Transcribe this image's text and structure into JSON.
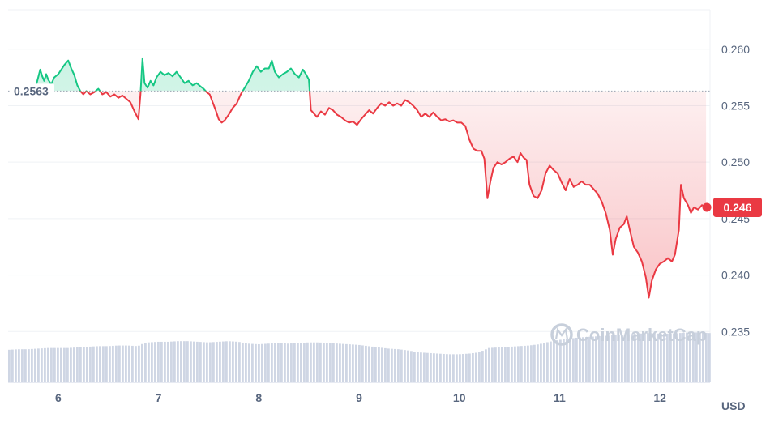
{
  "chart_data": {
    "type": "area",
    "baseline": 0.2563,
    "baseline_label": "0.2563",
    "current_value": 0.246,
    "current_label": "0.246",
    "unit": "USD",
    "watermark": "CoinMarketCap",
    "x_ticks": [
      {
        "x": 6,
        "label": "6"
      },
      {
        "x": 7,
        "label": "7"
      },
      {
        "x": 8,
        "label": "8"
      },
      {
        "x": 9,
        "label": "9"
      },
      {
        "x": 10,
        "label": "10"
      },
      {
        "x": 11,
        "label": "11"
      },
      {
        "x": 12,
        "label": "12"
      }
    ],
    "y_ticks": [
      {
        "y": 0.26,
        "label": "0.260"
      },
      {
        "y": 0.255,
        "label": "0.255"
      },
      {
        "y": 0.25,
        "label": "0.250"
      },
      {
        "y": 0.245,
        "label": "0.245"
      },
      {
        "y": 0.24,
        "label": "0.240"
      },
      {
        "y": 0.235,
        "label": "0.235"
      }
    ],
    "xlim": [
      5.5,
      12.5
    ],
    "ylim": [
      0.2305,
      0.2635
    ],
    "grid": true,
    "colors": {
      "up": "#16c784",
      "down": "#ea3943",
      "volume": "#cfd6e4",
      "grid": "#eff2f5"
    },
    "series": [
      {
        "values": [
          [
            5.75,
            0.2563
          ],
          [
            5.78,
            0.2568
          ],
          [
            5.8,
            0.2575
          ],
          [
            5.82,
            0.2582
          ],
          [
            5.84,
            0.2576
          ],
          [
            5.86,
            0.2572
          ],
          [
            5.88,
            0.2578
          ],
          [
            5.9,
            0.2573
          ],
          [
            5.93,
            0.2569
          ],
          [
            5.96,
            0.2575
          ],
          [
            6.0,
            0.2578
          ],
          [
            6.03,
            0.2582
          ],
          [
            6.06,
            0.2586
          ],
          [
            6.1,
            0.259
          ],
          [
            6.13,
            0.2583
          ],
          [
            6.16,
            0.2577
          ],
          [
            6.19,
            0.2568
          ],
          [
            6.22,
            0.2563
          ],
          [
            6.25,
            0.256
          ],
          [
            6.28,
            0.2563
          ],
          [
            6.32,
            0.256
          ],
          [
            6.36,
            0.2562
          ],
          [
            6.4,
            0.2565
          ],
          [
            6.44,
            0.256
          ],
          [
            6.48,
            0.2562
          ],
          [
            6.52,
            0.2558
          ],
          [
            6.56,
            0.256
          ],
          [
            6.6,
            0.2557
          ],
          [
            6.64,
            0.2559
          ],
          [
            6.68,
            0.2556
          ],
          [
            6.72,
            0.2553
          ],
          [
            6.76,
            0.2545
          ],
          [
            6.8,
            0.2538
          ],
          [
            6.82,
            0.256
          ],
          [
            6.84,
            0.2592
          ],
          [
            6.86,
            0.257
          ],
          [
            6.89,
            0.2566
          ],
          [
            6.92,
            0.2572
          ],
          [
            6.95,
            0.2568
          ],
          [
            6.98,
            0.2575
          ],
          [
            7.02,
            0.258
          ],
          [
            7.06,
            0.2577
          ],
          [
            7.1,
            0.2579
          ],
          [
            7.14,
            0.2576
          ],
          [
            7.18,
            0.258
          ],
          [
            7.22,
            0.2575
          ],
          [
            7.26,
            0.257
          ],
          [
            7.3,
            0.2572
          ],
          [
            7.34,
            0.2568
          ],
          [
            7.38,
            0.257
          ],
          [
            7.42,
            0.2567
          ],
          [
            7.45,
            0.2565
          ],
          [
            7.48,
            0.2562
          ],
          [
            7.51,
            0.256
          ],
          [
            7.54,
            0.2553
          ],
          [
            7.57,
            0.2546
          ],
          [
            7.6,
            0.2538
          ],
          [
            7.63,
            0.2535
          ],
          [
            7.66,
            0.2537
          ],
          [
            7.7,
            0.2542
          ],
          [
            7.74,
            0.2548
          ],
          [
            7.78,
            0.2552
          ],
          [
            7.82,
            0.256
          ],
          [
            7.86,
            0.2566
          ],
          [
            7.9,
            0.2572
          ],
          [
            7.94,
            0.258
          ],
          [
            7.98,
            0.2585
          ],
          [
            8.02,
            0.258
          ],
          [
            8.06,
            0.2583
          ],
          [
            8.1,
            0.2583
          ],
          [
            8.13,
            0.259
          ],
          [
            8.16,
            0.258
          ],
          [
            8.2,
            0.2575
          ],
          [
            8.24,
            0.2578
          ],
          [
            8.28,
            0.258
          ],
          [
            8.32,
            0.2583
          ],
          [
            8.36,
            0.2578
          ],
          [
            8.4,
            0.2575
          ],
          [
            8.44,
            0.2582
          ],
          [
            8.47,
            0.2578
          ],
          [
            8.5,
            0.2573
          ],
          [
            8.52,
            0.2546
          ],
          [
            8.55,
            0.2543
          ],
          [
            8.58,
            0.254
          ],
          [
            8.62,
            0.2545
          ],
          [
            8.66,
            0.2542
          ],
          [
            8.7,
            0.2548
          ],
          [
            8.74,
            0.2546
          ],
          [
            8.78,
            0.2542
          ],
          [
            8.82,
            0.254
          ],
          [
            8.86,
            0.2537
          ],
          [
            8.9,
            0.2535
          ],
          [
            8.94,
            0.2536
          ],
          [
            8.98,
            0.2533
          ],
          [
            9.02,
            0.2538
          ],
          [
            9.06,
            0.2542
          ],
          [
            9.1,
            0.2546
          ],
          [
            9.14,
            0.2543
          ],
          [
            9.18,
            0.2548
          ],
          [
            9.22,
            0.2552
          ],
          [
            9.26,
            0.255
          ],
          [
            9.3,
            0.2553
          ],
          [
            9.34,
            0.255
          ],
          [
            9.38,
            0.2552
          ],
          [
            9.42,
            0.255
          ],
          [
            9.46,
            0.2555
          ],
          [
            9.5,
            0.2553
          ],
          [
            9.54,
            0.255
          ],
          [
            9.58,
            0.2546
          ],
          [
            9.62,
            0.254
          ],
          [
            9.66,
            0.2543
          ],
          [
            9.7,
            0.254
          ],
          [
            9.74,
            0.2544
          ],
          [
            9.78,
            0.254
          ],
          [
            9.82,
            0.2537
          ],
          [
            9.86,
            0.2538
          ],
          [
            9.9,
            0.2536
          ],
          [
            9.94,
            0.2537
          ],
          [
            9.98,
            0.2535
          ],
          [
            10.02,
            0.2535
          ],
          [
            10.06,
            0.2532
          ],
          [
            10.1,
            0.252
          ],
          [
            10.14,
            0.2512
          ],
          [
            10.18,
            0.251
          ],
          [
            10.22,
            0.251
          ],
          [
            10.25,
            0.2503
          ],
          [
            10.28,
            0.2468
          ],
          [
            10.31,
            0.2483
          ],
          [
            10.34,
            0.2495
          ],
          [
            10.38,
            0.25
          ],
          [
            10.42,
            0.2498
          ],
          [
            10.46,
            0.25
          ],
          [
            10.5,
            0.2503
          ],
          [
            10.54,
            0.2505
          ],
          [
            10.58,
            0.25
          ],
          [
            10.61,
            0.2508
          ],
          [
            10.64,
            0.2504
          ],
          [
            10.67,
            0.2502
          ],
          [
            10.7,
            0.248
          ],
          [
            10.74,
            0.247
          ],
          [
            10.78,
            0.2468
          ],
          [
            10.82,
            0.2475
          ],
          [
            10.86,
            0.249
          ],
          [
            10.9,
            0.2497
          ],
          [
            10.94,
            0.2493
          ],
          [
            10.98,
            0.249
          ],
          [
            11.02,
            0.2482
          ],
          [
            11.06,
            0.2475
          ],
          [
            11.1,
            0.2485
          ],
          [
            11.14,
            0.2478
          ],
          [
            11.18,
            0.248
          ],
          [
            11.22,
            0.2483
          ],
          [
            11.26,
            0.248
          ],
          [
            11.3,
            0.248
          ],
          [
            11.34,
            0.2476
          ],
          [
            11.38,
            0.2472
          ],
          [
            11.42,
            0.2465
          ],
          [
            11.46,
            0.2455
          ],
          [
            11.5,
            0.244
          ],
          [
            11.53,
            0.2418
          ],
          [
            11.56,
            0.2432
          ],
          [
            11.6,
            0.2442
          ],
          [
            11.64,
            0.2445
          ],
          [
            11.67,
            0.2452
          ],
          [
            11.7,
            0.244
          ],
          [
            11.74,
            0.2425
          ],
          [
            11.78,
            0.242
          ],
          [
            11.82,
            0.2412
          ],
          [
            11.86,
            0.2398
          ],
          [
            11.89,
            0.238
          ],
          [
            11.92,
            0.2395
          ],
          [
            11.96,
            0.2405
          ],
          [
            12.0,
            0.241
          ],
          [
            12.04,
            0.2412
          ],
          [
            12.08,
            0.2415
          ],
          [
            12.12,
            0.2412
          ],
          [
            12.15,
            0.2418
          ],
          [
            12.19,
            0.244
          ],
          [
            12.21,
            0.248
          ],
          [
            12.24,
            0.2468
          ],
          [
            12.28,
            0.2462
          ],
          [
            12.31,
            0.2455
          ],
          [
            12.34,
            0.246
          ],
          [
            12.38,
            0.2458
          ],
          [
            12.42,
            0.2462
          ],
          [
            12.46,
            0.246
          ]
        ]
      }
    ],
    "volume_values": [
      [
        5.5,
        0.52
      ],
      [
        5.6,
        0.53
      ],
      [
        5.7,
        0.53
      ],
      [
        5.8,
        0.54
      ],
      [
        5.9,
        0.55
      ],
      [
        6.0,
        0.55
      ],
      [
        6.1,
        0.55
      ],
      [
        6.2,
        0.56
      ],
      [
        6.3,
        0.57
      ],
      [
        6.4,
        0.58
      ],
      [
        6.5,
        0.58
      ],
      [
        6.6,
        0.59
      ],
      [
        6.7,
        0.59
      ],
      [
        6.8,
        0.58
      ],
      [
        6.85,
        0.62
      ],
      [
        6.9,
        0.64
      ],
      [
        7.0,
        0.65
      ],
      [
        7.1,
        0.65
      ],
      [
        7.2,
        0.66
      ],
      [
        7.3,
        0.66
      ],
      [
        7.4,
        0.65
      ],
      [
        7.5,
        0.64
      ],
      [
        7.6,
        0.65
      ],
      [
        7.7,
        0.66
      ],
      [
        7.8,
        0.65
      ],
      [
        7.9,
        0.62
      ],
      [
        8.0,
        0.61
      ],
      [
        8.1,
        0.62
      ],
      [
        8.2,
        0.63
      ],
      [
        8.3,
        0.62
      ],
      [
        8.4,
        0.63
      ],
      [
        8.5,
        0.64
      ],
      [
        8.6,
        0.64
      ],
      [
        8.7,
        0.63
      ],
      [
        8.8,
        0.62
      ],
      [
        8.9,
        0.61
      ],
      [
        9.0,
        0.6
      ],
      [
        9.1,
        0.58
      ],
      [
        9.2,
        0.56
      ],
      [
        9.3,
        0.54
      ],
      [
        9.4,
        0.53
      ],
      [
        9.5,
        0.51
      ],
      [
        9.6,
        0.48
      ],
      [
        9.7,
        0.47
      ],
      [
        9.8,
        0.46
      ],
      [
        9.9,
        0.45
      ],
      [
        10.0,
        0.45
      ],
      [
        10.1,
        0.46
      ],
      [
        10.2,
        0.48
      ],
      [
        10.3,
        0.55
      ],
      [
        10.4,
        0.56
      ],
      [
        10.5,
        0.57
      ],
      [
        10.6,
        0.58
      ],
      [
        10.7,
        0.59
      ],
      [
        10.8,
        0.61
      ],
      [
        10.9,
        0.65
      ],
      [
        11.0,
        0.68
      ],
      [
        11.1,
        0.7
      ],
      [
        11.2,
        0.72
      ],
      [
        11.3,
        0.73
      ],
      [
        11.4,
        0.74
      ],
      [
        11.5,
        0.75
      ],
      [
        11.6,
        0.76
      ],
      [
        11.7,
        0.77
      ],
      [
        11.8,
        0.78
      ],
      [
        11.9,
        0.79
      ],
      [
        12.0,
        0.78
      ],
      [
        12.1,
        0.78
      ],
      [
        12.2,
        0.79
      ],
      [
        12.3,
        0.8
      ],
      [
        12.4,
        0.8
      ],
      [
        12.5,
        0.79
      ]
    ]
  }
}
